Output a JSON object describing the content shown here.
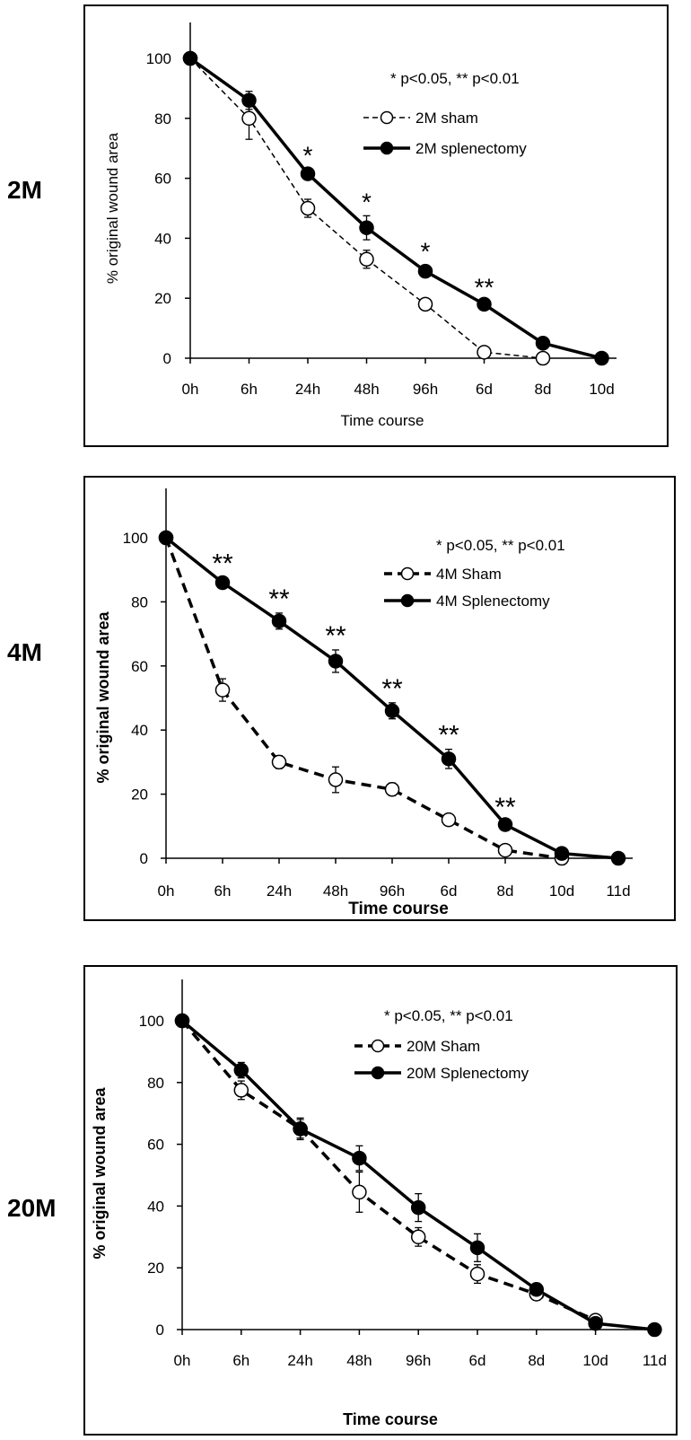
{
  "chart_data": [
    {
      "row_label": "2M",
      "type": "line",
      "xlabel": "Time course",
      "ylabel": "% original wound area",
      "ylim": [
        0,
        100
      ],
      "yticks": [
        0,
        20,
        40,
        60,
        80,
        100
      ],
      "categories": [
        "0h",
        "6h",
        "24h",
        "48h",
        "96h",
        "6d",
        "8d",
        "10d"
      ],
      "annotation": "* p<0.05, ** p<0.01",
      "series": [
        {
          "name": "2M sham",
          "style": "dashed-open",
          "values": [
            100,
            80,
            50,
            33,
            18,
            2,
            0,
            null
          ],
          "errors": [
            0,
            7,
            3,
            3,
            1,
            1,
            0,
            null
          ]
        },
        {
          "name": "2M splenectomy",
          "style": "solid-filled",
          "values": [
            100,
            86,
            61.5,
            43.5,
            29,
            18,
            5,
            0
          ],
          "errors": [
            0,
            3,
            1.5,
            4,
            2,
            1,
            1,
            0
          ]
        }
      ],
      "significance": [
        "",
        "",
        "*",
        "*",
        "*",
        "**",
        "",
        ""
      ]
    },
    {
      "row_label": "4M",
      "type": "line",
      "xlabel": "Time course",
      "ylabel": "% original wound area",
      "ylim": [
        0,
        100
      ],
      "yticks": [
        0,
        20,
        40,
        60,
        80,
        100
      ],
      "categories": [
        "0h",
        "6h",
        "24h",
        "48h",
        "96h",
        "6d",
        "8d",
        "10d",
        "11d"
      ],
      "annotation": "* p<0.05, ** p<0.01",
      "series": [
        {
          "name": "4M Sham",
          "style": "dashed-open",
          "values": [
            100,
            52.5,
            30,
            24.5,
            21.5,
            12,
            2.5,
            0,
            null
          ],
          "errors": [
            0,
            3.5,
            2,
            4,
            2,
            1.5,
            1,
            0,
            null
          ]
        },
        {
          "name": "4M Splenectomy",
          "style": "solid-filled",
          "values": [
            100,
            86,
            74,
            61.5,
            46,
            31,
            10.5,
            1.5,
            0
          ],
          "errors": [
            0,
            1.5,
            2.5,
            3.5,
            2.5,
            3,
            1,
            0,
            0
          ]
        }
      ],
      "significance": [
        "",
        "**",
        "**",
        "**",
        "**",
        "**",
        "**",
        "",
        ""
      ]
    },
    {
      "row_label": "20M",
      "type": "line",
      "xlabel": "Time course",
      "ylabel": "% original wound area",
      "ylim": [
        0,
        100
      ],
      "yticks": [
        0,
        20,
        40,
        60,
        80,
        100
      ],
      "categories": [
        "0h",
        "6h",
        "24h",
        "48h",
        "96h",
        "6d",
        "8d",
        "10d",
        "11d"
      ],
      "annotation": "* p<0.05, ** p<0.01",
      "series": [
        {
          "name": "20M Sham",
          "style": "dashed-open",
          "values": [
            100,
            77.5,
            65,
            44.5,
            30,
            18,
            11.5,
            3,
            null
          ],
          "errors": [
            0,
            3,
            3,
            6.5,
            3,
            3,
            2,
            1,
            null
          ]
        },
        {
          "name": "20M Splenectomy",
          "style": "solid-filled",
          "values": [
            100,
            84,
            65,
            55.5,
            39.5,
            26.5,
            13,
            2,
            0
          ],
          "errors": [
            0,
            2.5,
            3.5,
            4,
            4.5,
            4.5,
            2,
            1,
            0
          ]
        }
      ],
      "significance": [
        "",
        "",
        "",
        "",
        "",
        "",
        "",
        "",
        ""
      ]
    }
  ]
}
